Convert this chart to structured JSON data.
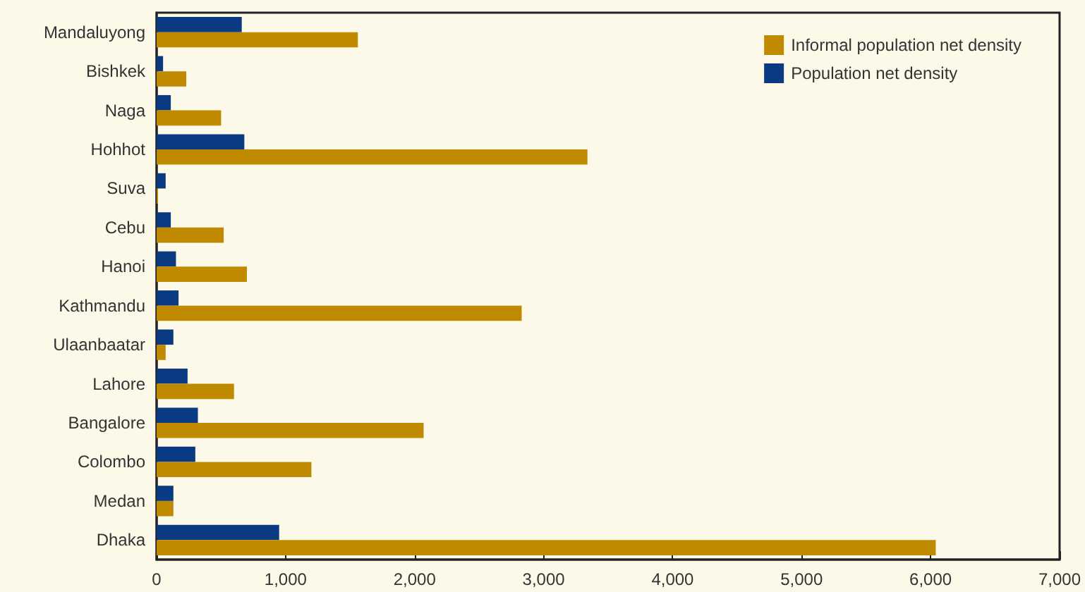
{
  "chart_data": {
    "type": "bar",
    "orientation": "horizontal",
    "categories": [
      "Mandaluyong",
      "Bishkek",
      "Naga",
      "Hohhot",
      "Suva",
      "Cebu",
      "Hanoi",
      "Kathmandu",
      "Ulaanbaatar",
      "Lahore",
      "Bangalore",
      "Colombo",
      "Medan",
      "Dhaka"
    ],
    "series": [
      {
        "name": "Population net density",
        "color": "#0a3a82",
        "values": [
          660,
          50,
          110,
          680,
          70,
          110,
          150,
          170,
          130,
          240,
          320,
          300,
          130,
          950
        ]
      },
      {
        "name": "Informal population net density",
        "color": "#c08a00",
        "values": [
          1560,
          230,
          500,
          3340,
          10,
          520,
          700,
          2830,
          70,
          600,
          2070,
          1200,
          130,
          6040
        ]
      }
    ],
    "xlim": [
      0,
      7000
    ],
    "xticks": [
      {
        "value": 0,
        "label": "0"
      },
      {
        "value": 1000,
        "label": "1,000"
      },
      {
        "value": 2000,
        "label": "2,000"
      },
      {
        "value": 3000,
        "label": "3,000"
      },
      {
        "value": 4000,
        "label": "4,000"
      },
      {
        "value": 5000,
        "label": "5,000"
      },
      {
        "value": 6000,
        "label": "6,000"
      },
      {
        "value": 7000,
        "label": "7,000"
      }
    ],
    "grid": false,
    "legend": "top right"
  }
}
